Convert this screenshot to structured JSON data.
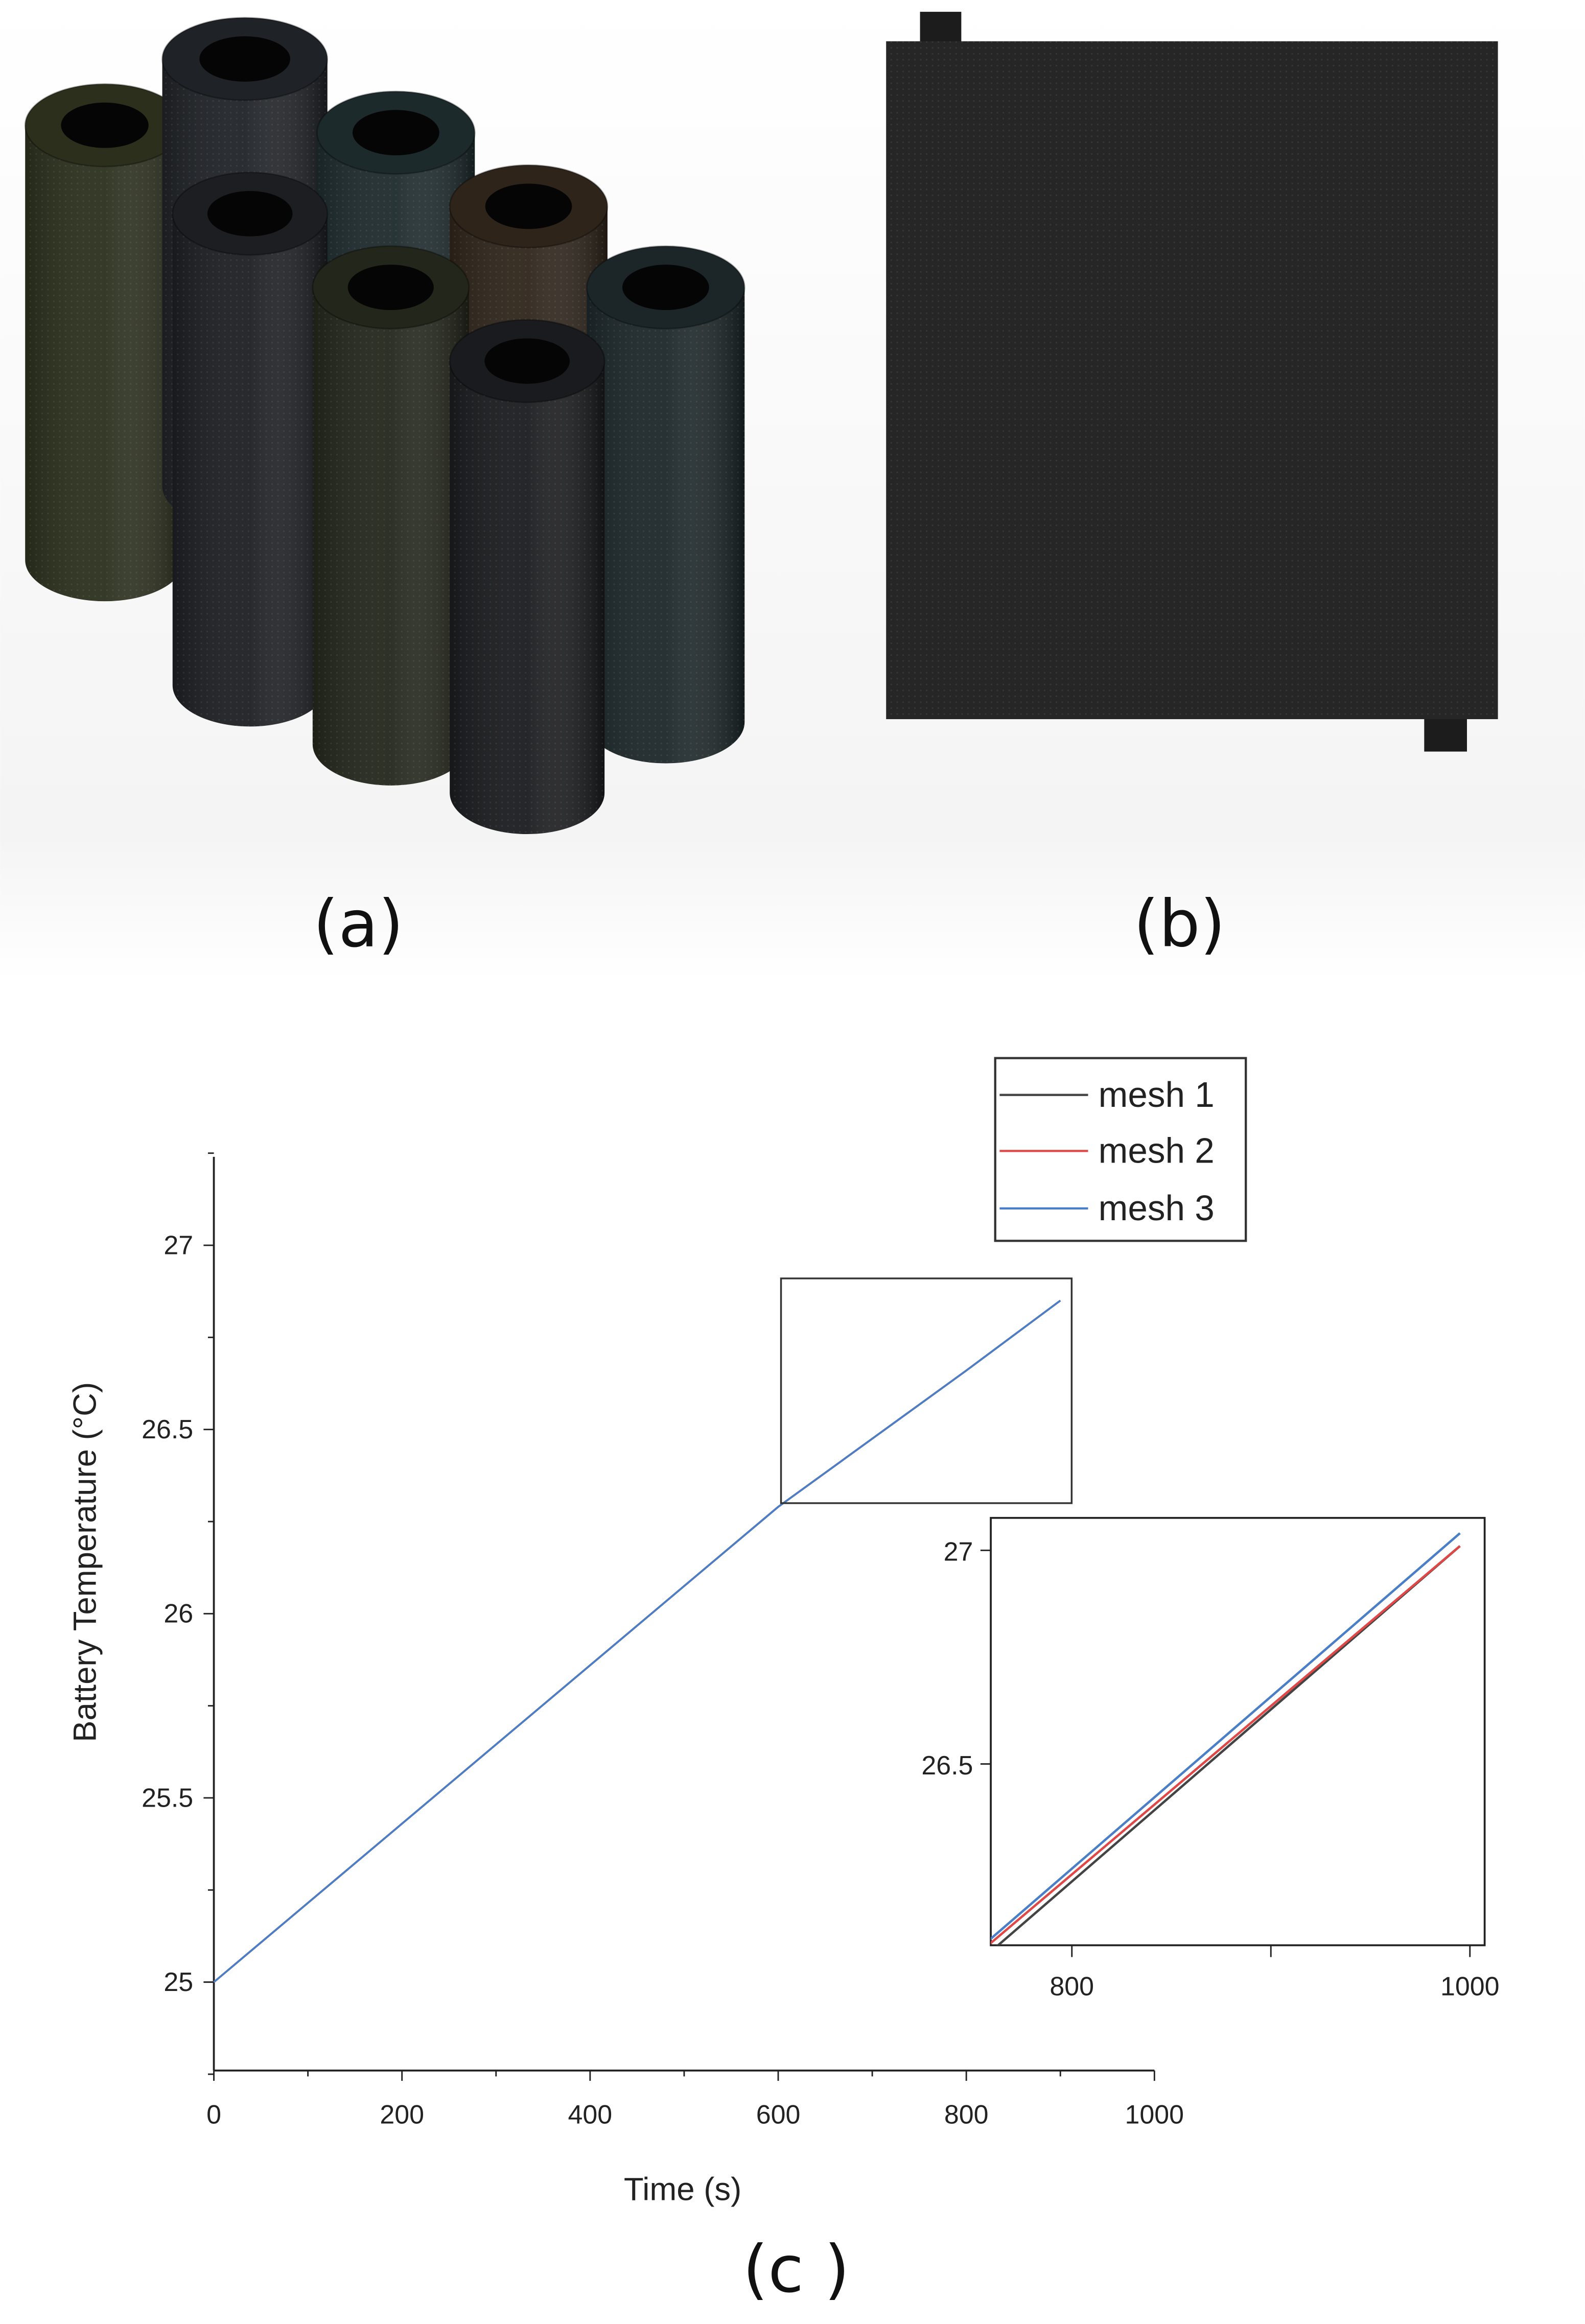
{
  "panels": {
    "a_label": "(a)",
    "b_label": "(b)",
    "c_label": "(c )"
  },
  "colors": {
    "mesh1": "#444444",
    "mesh2": "#e04848",
    "mesh3": "#4a7fc8",
    "cylinders": [
      "#2b2f1c",
      "#1f2226",
      "#1d2a2c",
      "#1c1e22",
      "#2e241a",
      "#23261b",
      "#1c2628",
      "#1a1b1e"
    ],
    "plate": "#262626"
  },
  "chart_data": {
    "type": "line",
    "xlabel": "Time (s)",
    "ylabel": "Battery Temperature (°C)",
    "xlim": [
      0,
      1000
    ],
    "ylim": [
      24.75,
      27.35
    ],
    "xticks": [
      "0",
      "200",
      "400",
      "600",
      "800",
      "1000"
    ],
    "yticks": [
      "25",
      "25.5",
      "26",
      "26.5",
      "27"
    ],
    "grid": false,
    "legend_placement": "top-right",
    "series": [
      {
        "name": "mesh 1",
        "x": [
          0,
          200,
          400,
          600,
          800,
          900
        ],
        "y": [
          25.0,
          25.43,
          25.86,
          26.29,
          26.66,
          26.85
        ]
      },
      {
        "name": "mesh 2",
        "x": [
          0,
          200,
          400,
          600,
          800,
          900
        ],
        "y": [
          25.0,
          25.43,
          25.86,
          26.29,
          26.66,
          26.85
        ]
      },
      {
        "name": "mesh 3",
        "x": [
          0,
          200,
          400,
          600,
          800,
          900
        ],
        "y": [
          25.0,
          25.43,
          25.86,
          26.29,
          26.66,
          26.85
        ]
      }
    ],
    "zoom_region": {
      "x": [
        603,
        912
      ],
      "y": [
        26.3,
        26.91
      ]
    },
    "inset": {
      "xlim": [
        759,
        1010
      ],
      "ylim": [
        26.08,
        27.06
      ],
      "xticks": [
        "800",
        "1000"
      ],
      "yticks": [
        "26.5",
        "27"
      ],
      "series": [
        {
          "name": "mesh 1",
          "x": [
            759,
            995
          ],
          "y": [
            26.06,
            27.01
          ]
        },
        {
          "name": "mesh 2",
          "x": [
            759,
            995
          ],
          "y": [
            26.08,
            27.01
          ]
        },
        {
          "name": "mesh 3",
          "x": [
            759,
            995
          ],
          "y": [
            26.09,
            27.04
          ]
        }
      ]
    }
  }
}
